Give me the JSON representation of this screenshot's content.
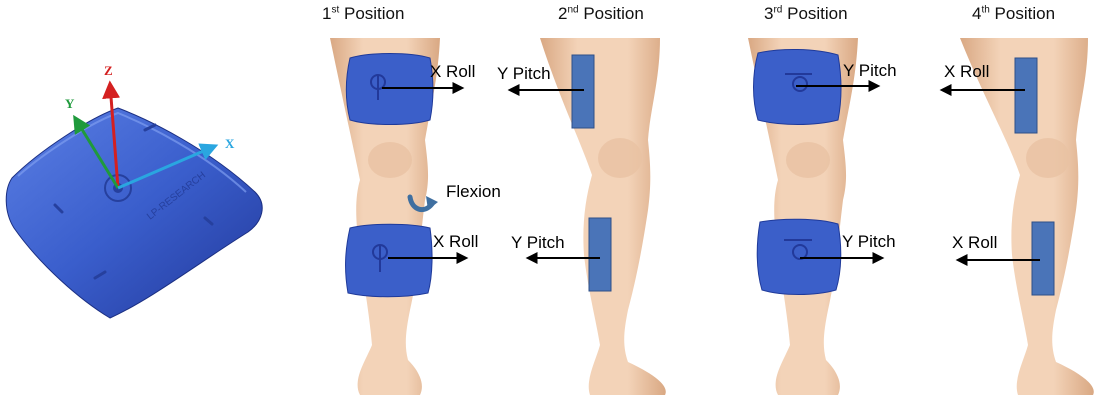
{
  "device": {
    "name": "IMU sensor",
    "brand_text": "LP-RESEARCH",
    "axes": [
      {
        "label": "Z",
        "color": "#d42020"
      },
      {
        "label": "Y",
        "color": "#1f9a3c"
      },
      {
        "label": "X",
        "color": "#2aa6e0"
      }
    ]
  },
  "positions": [
    {
      "num": "1",
      "suffix": "st",
      "word": "Position"
    },
    {
      "num": "2",
      "suffix": "nd",
      "word": "Position"
    },
    {
      "num": "3",
      "suffix": "rd",
      "word": "Position"
    },
    {
      "num": "4",
      "suffix": "th",
      "word": "Position"
    }
  ],
  "labels": {
    "p1_top": "X Roll",
    "p1_bottom": "X Roll",
    "p2_top": "Y Pitch",
    "p2_bottom": "Y Pitch",
    "p3_top": "Y Pitch",
    "p3_bottom": "Y Pitch",
    "p4_top": "X Roll",
    "p4_bottom": "X Roll",
    "flexion": "Flexion"
  },
  "colors": {
    "sensor_blue": "#3b5fc9",
    "sensor_dark": "#2a47a8",
    "side_bar": "#4a74b8",
    "skin_light": "#f3d3b8",
    "skin_shade": "#dcae8c",
    "flexion_icon": "#3f6fa0",
    "arrow": "#000000"
  }
}
